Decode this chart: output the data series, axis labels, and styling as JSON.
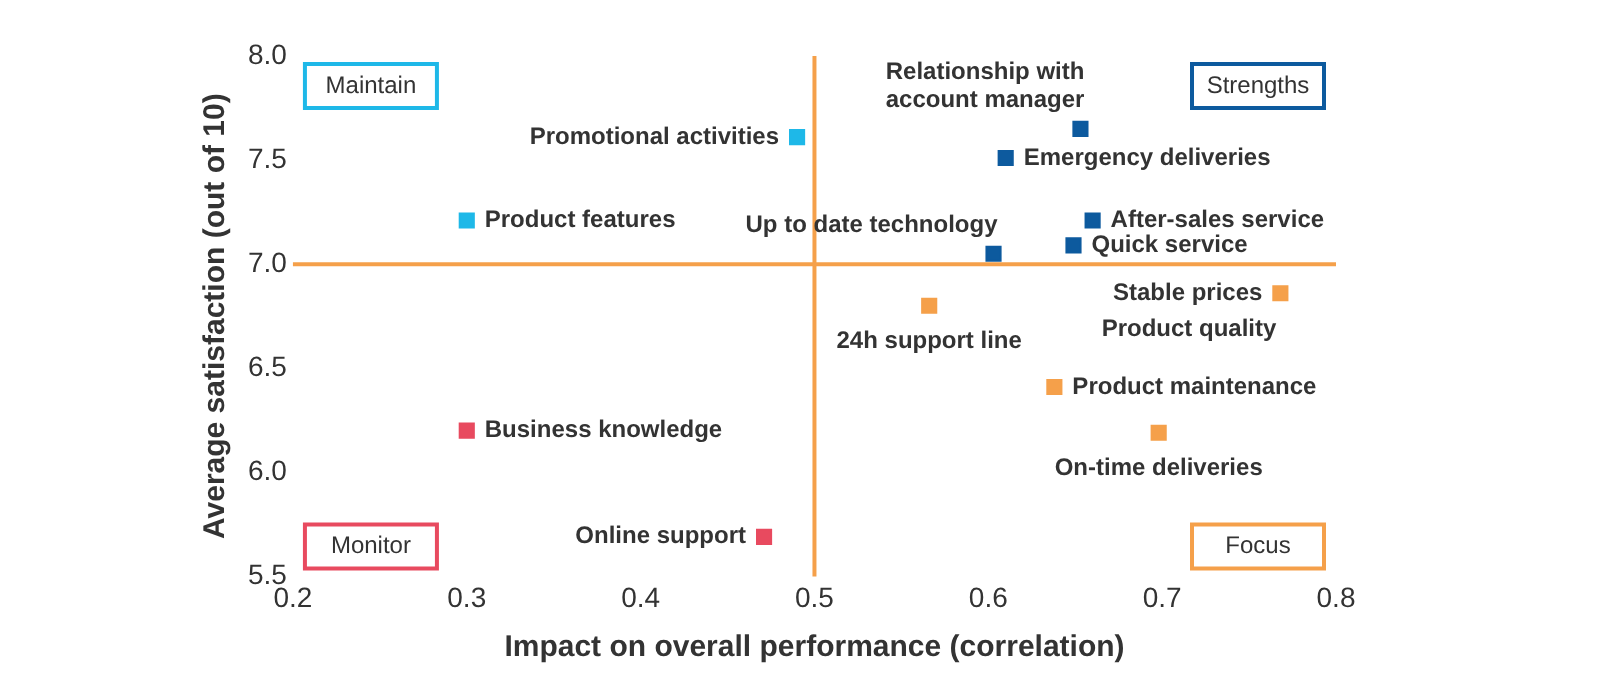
{
  "chart_data": {
    "type": "scatter",
    "xlabel": "Impact on overall performance (correlation)",
    "ylabel": "Average satisfaction (out of 10)",
    "xlim": [
      0.2,
      0.8
    ],
    "xticks": [
      0.2,
      0.3,
      0.4,
      0.5,
      0.6,
      0.7,
      0.8
    ],
    "ylim": [
      5.5,
      8
    ],
    "yticks": [
      {
        "value": 5.5,
        "label": "5.5"
      },
      {
        "value": 6,
        "label": "6.0"
      },
      {
        "value": 6.5,
        "label": "6.5"
      },
      {
        "value": 7,
        "label": "7.0"
      },
      {
        "value": 7.5,
        "label": "7.5"
      },
      {
        "value": 8,
        "label": "8.0"
      }
    ],
    "marker": "square",
    "grid": false,
    "legend": false,
    "series": [
      {
        "color": "#1eb8e8",
        "x": [
          0.49,
          0.3
        ],
        "values": [
          7.61,
          7.21
        ]
      },
      {
        "color": "#0d5a9e",
        "x": [
          0.61,
          0.653,
          0.66,
          0.649,
          0.603
        ],
        "values": [
          7.51,
          7.65,
          7.21,
          7.09,
          7.05
        ]
      },
      {
        "color": "#e84a5f",
        "x": [
          0.3,
          0.471
        ],
        "values": [
          6.2,
          5.69
        ]
      },
      {
        "color": "#f5a04a",
        "x": [
          0.566,
          0.768,
          0.638,
          0.698
        ],
        "values": [
          6.8,
          6.86,
          6.41,
          6.19
        ]
      }
    ],
    "ref_lines": [
      {
        "axis": "x",
        "value": 0.5,
        "color": "#f5a04a"
      },
      {
        "axis": "y",
        "value": 7,
        "color": "#f5a04a"
      }
    ],
    "annotations": [
      "Maintain",
      "Strengths",
      "Monitor",
      "Focus",
      {
        "text": "Promotional activities",
        "x": 0.49,
        "y": 7.61
      },
      {
        "text": "Product features",
        "x": 0.3,
        "y": 7.21
      },
      {
        "text": "Emergency deliveries",
        "x": 0.61,
        "y": 7.51
      },
      {
        "text": "Relationship with\naccount manager",
        "x": 0.653,
        "y": 7.65
      },
      {
        "text": "After-sales service",
        "x": 0.66,
        "y": 7.21
      },
      {
        "text": "Quick service",
        "x": 0.649,
        "y": 7.09
      },
      {
        "text": "Up to date technology",
        "x": 0.603,
        "y": 7.05
      },
      {
        "text": "Business knowledge",
        "x": 0.3,
        "y": 6.2
      },
      {
        "text": "Online support",
        "x": 0.471,
        "y": 5.69
      },
      {
        "text": "24h support line",
        "x": 0.566,
        "y": 6.8
      },
      {
        "text": "Stable prices",
        "x": 0.768,
        "y": 6.86
      },
      {
        "text": "Product quality",
        "x": 0.768,
        "y": 6.86
      },
      {
        "text": "Product maintenance",
        "x": 0.638,
        "y": 6.41
      },
      {
        "text": "On-time deliveries",
        "x": 0.698,
        "y": 6.19
      }
    ]
  }
}
